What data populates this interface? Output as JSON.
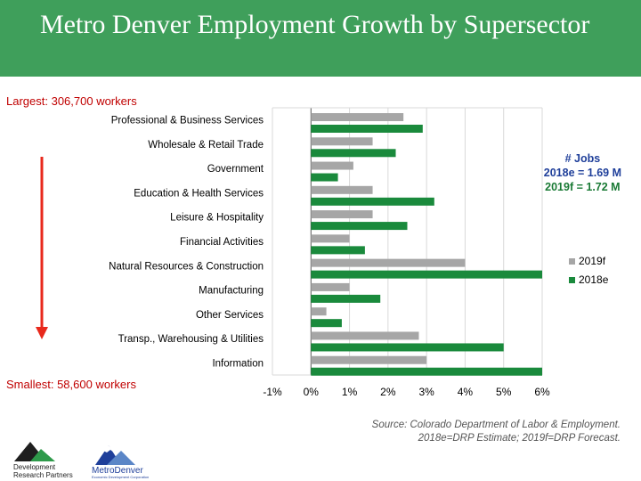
{
  "header": {
    "title": "Metro Denver Employment Growth by Supersector",
    "bg_color": "#3f9f5b"
  },
  "annotations": {
    "largest": "Largest: 306,700 workers",
    "smallest": "Smallest: 58,600 workers",
    "jobs_title": "# Jobs",
    "jobs_2018e": "2018e = 1.69 M",
    "jobs_2019f": "2019f = 1.72 M"
  },
  "source": {
    "line1": "Source: Colorado Department of Labor & Employment.",
    "line2": "2018e=DRP Estimate; 2019f=DRP Forecast."
  },
  "logos": {
    "drp_line1": "Development",
    "drp_line2": "Research Partners",
    "metro_text": "MetroDenver",
    "metro_sub": "Economic Development Corporation"
  },
  "chart_data": {
    "type": "bar",
    "orientation": "horizontal",
    "categories": [
      "Professional & Business Services",
      "Wholesale & Retail Trade",
      "Government",
      "Education & Health Services",
      "Leisure & Hospitality",
      "Financial Activities",
      "Natural Resources & Construction",
      "Manufacturing",
      "Other Services",
      "Transp., Warehousing & Utilities",
      "Information"
    ],
    "series": [
      {
        "name": "2019f",
        "color": "#a6a6a6",
        "values": [
          2.4,
          1.6,
          1.1,
          1.6,
          1.6,
          1.0,
          4.0,
          1.0,
          0.4,
          2.8,
          3.0
        ]
      },
      {
        "name": "2018e",
        "color": "#1a8a3c",
        "values": [
          2.9,
          2.2,
          0.7,
          3.2,
          2.5,
          1.4,
          6.0,
          1.8,
          0.8,
          5.0,
          6.0
        ]
      }
    ],
    "xlim": [
      -1,
      6
    ],
    "xticks": [
      "-1%",
      "0%",
      "1%",
      "2%",
      "3%",
      "4%",
      "5%",
      "6%"
    ],
    "title": "",
    "xlabel": "",
    "ylabel": "",
    "grid": true,
    "legend": "right"
  },
  "colors": {
    "arrow": "#e8291c",
    "red_text": "#c00000",
    "blue_text": "#1f3f9a",
    "green_text": "#1a7a35"
  }
}
